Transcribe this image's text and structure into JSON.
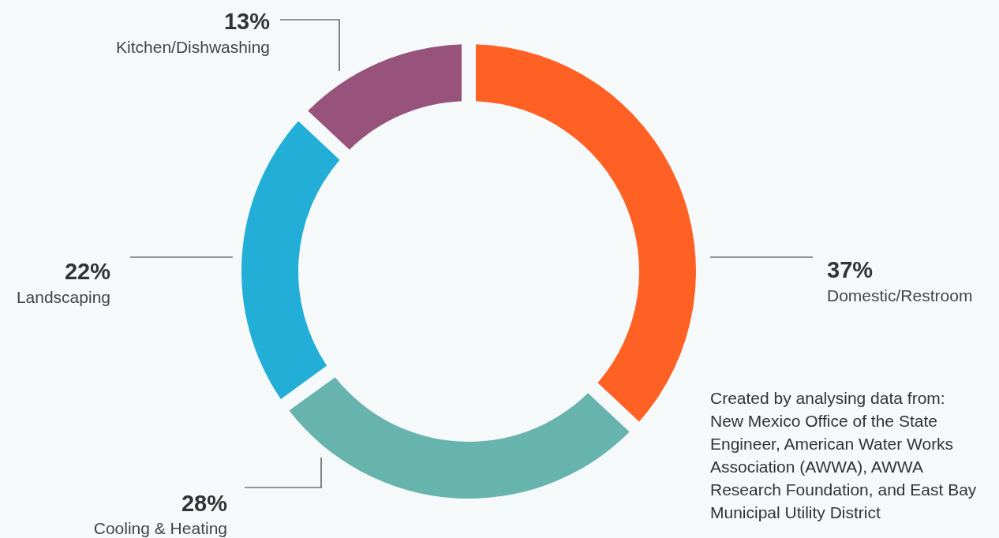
{
  "chart_data": {
    "type": "donut",
    "categories": [
      "Domestic/Restroom",
      "Cooling & Heating",
      "Landscaping",
      "Kitchen/Dishwashing"
    ],
    "values": [
      37,
      28,
      22,
      13
    ],
    "colors": [
      "#ff6124",
      "#67b3ae",
      "#22aed6",
      "#98537c"
    ],
    "value_labels": [
      "37%",
      "28%",
      "22%",
      "13%"
    ],
    "annotations": [
      "Created by analysing data from: New Mexico Office of the State Engineer, American Water Works Association (AWWA), AWWA Research Foundation, and East Bay Municipal Utility District"
    ]
  }
}
